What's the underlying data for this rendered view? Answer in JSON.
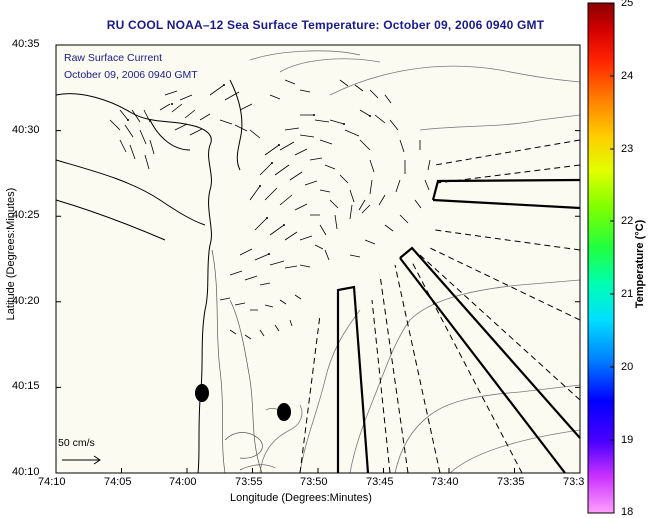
{
  "title": "RU COOL  NOAA–12  Sea Surface Temperature:  October 09, 2006 0940 GMT",
  "xlabel": "Longitude (Degrees:Minutes)",
  "ylabel": "Latitude (Degrees:Minutes)",
  "colorbar": {
    "label": "Temperature (°C)",
    "ticks": [
      "25",
      "24",
      "23",
      "22",
      "21",
      "20",
      "19",
      "18"
    ],
    "min": 18,
    "max": 25,
    "colors": [
      "#ff80ff",
      "#cc33ff",
      "#6600ff",
      "#0000ff",
      "#0066ff",
      "#00ccff",
      "#00ffcc",
      "#00ff66",
      "#33ff00",
      "#99ff00",
      "#ffff00",
      "#ffcc00",
      "#ff9900",
      "#ff6600",
      "#ff0000",
      "#cc0000",
      "#990000"
    ]
  },
  "map": {
    "x_ticks": [
      "74:10",
      "74:05",
      "74:00",
      "73:55",
      "73:50",
      "73:45",
      "73:40",
      "73:35",
      "73:3"
    ],
    "y_ticks": [
      "40:35",
      "40:30",
      "40:25",
      "40:20",
      "40:15",
      "40:10"
    ],
    "legend_line1": "Raw Surface Current",
    "legend_line2": "October 09, 2006 0940 GMT",
    "scale_label": "50 cm/s",
    "background": "#fbfbf1",
    "frame_color": "#000000",
    "land_line_color": "#000000",
    "contour_color": "#7a7a7a",
    "arrow_color": "#000000"
  }
}
